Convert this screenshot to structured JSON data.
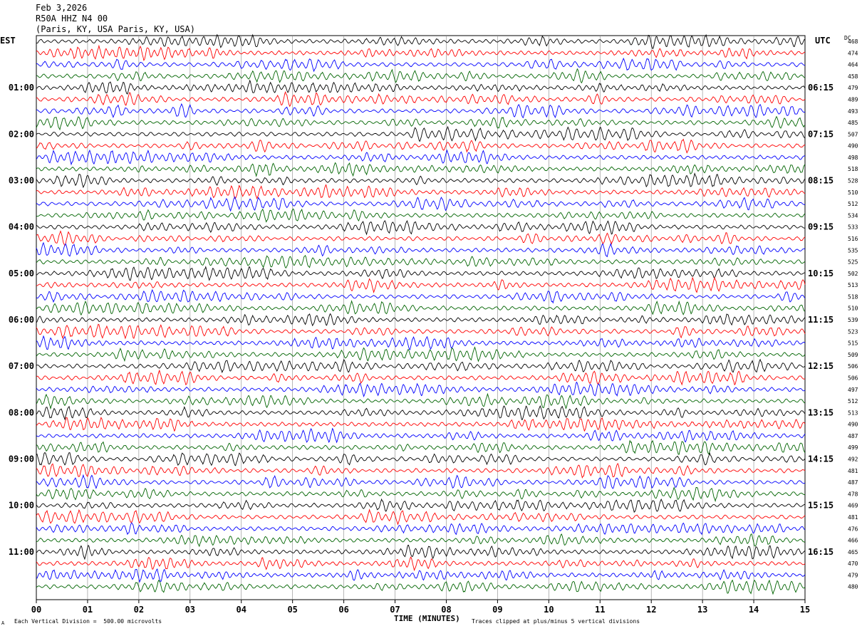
{
  "header": {
    "date": "Feb 3,2026",
    "station": "R50A HHZ N4 00",
    "location": "(Paris, KY, USA Paris, KY, USA)"
  },
  "left_tz": "EST",
  "right_tz": "UTC",
  "dc_label": "DC",
  "footer": {
    "mark": "A",
    "scale": "Each Vertical Division =  500.00 microvolts",
    "clip": "Traces clipped at plus/minus 5 vertical divisions"
  },
  "colors": {
    "black": "#000000",
    "red": "#ff0000",
    "blue": "#0000ff",
    "green": "#006400",
    "grid": "#000000"
  },
  "chart_data": {
    "type": "line",
    "title": "",
    "xlabel": "TIME (MINUTES)",
    "ylabel": "",
    "xlim": [
      0,
      15
    ],
    "x_ticks": [
      "00",
      "01",
      "02",
      "03",
      "04",
      "05",
      "06",
      "07",
      "08",
      "09",
      "10",
      "11",
      "12",
      "13",
      "14",
      "15"
    ],
    "left_hour_labels": [
      "01:00",
      "02:00",
      "03:00",
      "04:00",
      "05:00",
      "06:00",
      "07:00",
      "08:00",
      "09:00",
      "10:00",
      "11:00"
    ],
    "right_hour_labels": [
      "06:15",
      "07:15",
      "08:15",
      "09:15",
      "10:15",
      "11:15",
      "12:15",
      "13:15",
      "14:15",
      "15:15",
      "16:15"
    ],
    "trace_colors": [
      "black",
      "red",
      "blue",
      "green"
    ],
    "dc_offsets": [
      468,
      474,
      464,
      458,
      479,
      489,
      493,
      485,
      507,
      490,
      498,
      518,
      528,
      510,
      512,
      534,
      533,
      516,
      535,
      525,
      502,
      513,
      518,
      510,
      539,
      523,
      515,
      509,
      506,
      506,
      497,
      512,
      513,
      490,
      487,
      499,
      492,
      481,
      487,
      478,
      469,
      481,
      476,
      466,
      465,
      470,
      479,
      480
    ]
  }
}
